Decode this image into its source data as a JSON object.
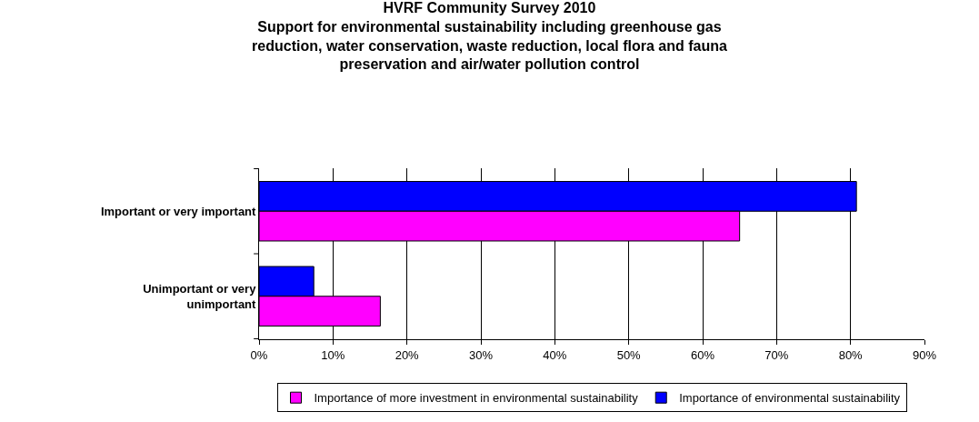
{
  "chart_data": {
    "type": "bar",
    "orientation": "horizontal",
    "title": "HVRF Community Survey 2010\nSupport for environmental sustainability including greenhouse gas\nreduction, water conservation, waste reduction, local flora and fauna\npreservation and air/water pollution control",
    "categories": [
      "Important or very important",
      "Unimportant or very\nunimportant"
    ],
    "series": [
      {
        "name": "Importance of more investment in environmental sustainability",
        "color": "#ff00ff",
        "values": [
          65.0,
          16.4
        ]
      },
      {
        "name": "Importance of environmental sustainability",
        "color": "#0000ff",
        "values": [
          80.8,
          7.4
        ]
      }
    ],
    "xlim": [
      0,
      90
    ],
    "xticks": [
      {
        "value": 0,
        "label": "0%"
      },
      {
        "value": 10,
        "label": "10%"
      },
      {
        "value": 20,
        "label": "20%"
      },
      {
        "value": 30,
        "label": "30%"
      },
      {
        "value": 40,
        "label": "40%"
      },
      {
        "value": 50,
        "label": "50%"
      },
      {
        "value": 60,
        "label": "60%"
      },
      {
        "value": 70,
        "label": "70%"
      },
      {
        "value": 80,
        "label": "80%"
      },
      {
        "value": 90,
        "label": "90%"
      }
    ],
    "grid": "x",
    "legend": "bottom"
  }
}
